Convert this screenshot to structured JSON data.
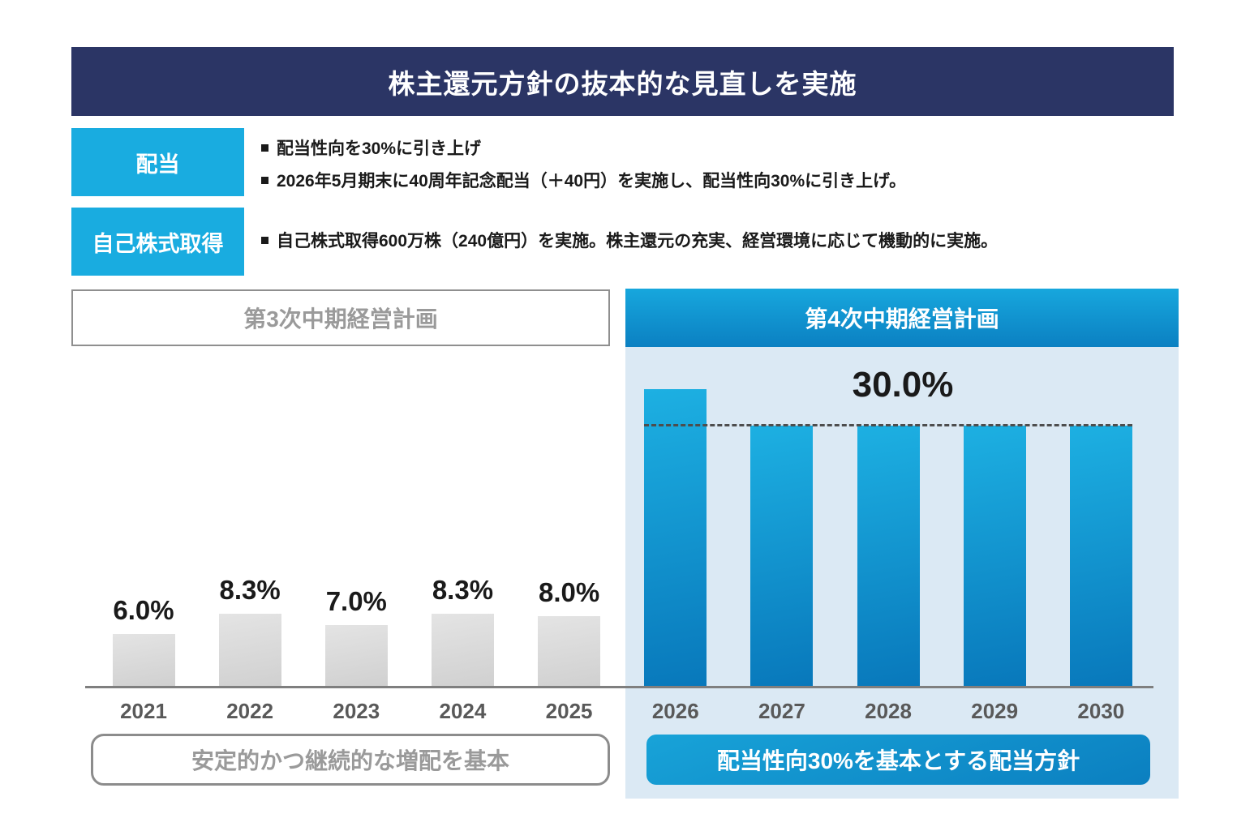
{
  "slide": {
    "title": "株主還元方針の抜本的な見直しを実施"
  },
  "policy": {
    "rows": [
      {
        "label": "配当",
        "bullets": [
          "配当性向を30%に引き上げ",
          "2026年5月期末に40周年記念配当（＋40円）を実施し、配当性向30%に引き上げ。"
        ]
      },
      {
        "label": "自己株式取得",
        "bullets": [
          "自己株式取得600万株（240億円）を実施。株主還元の充実、経営環境に応じて機動的に実施。"
        ]
      }
    ]
  },
  "chart_data": {
    "type": "bar",
    "categories": [
      "2021",
      "2022",
      "2023",
      "2024",
      "2025",
      "2026",
      "2027",
      "2028",
      "2029",
      "2030"
    ],
    "values": [
      6.0,
      8.3,
      7.0,
      8.3,
      8.0,
      34.2,
      30.0,
      30.0,
      30.0,
      30.0
    ],
    "bar_labels": [
      "6.0%",
      "8.3%",
      "7.0%",
      "8.3%",
      "8.0%",
      "",
      "",
      "",
      "",
      ""
    ],
    "segments": [
      "plan3",
      "plan3",
      "plan3",
      "plan3",
      "plan3",
      "plan4",
      "plan4",
      "plan4",
      "plan4",
      "plan4"
    ],
    "annotation": "30.0%",
    "reference_line": {
      "value": 30.0,
      "style": "dashed"
    },
    "headers": {
      "left": "第3次中期経営計画",
      "right": "第4次中期経営計画"
    },
    "footers": {
      "left": "安定的かつ継続的な増配を基本",
      "right": "配当性向30%を基本とする配当方針"
    },
    "unit": "%",
    "ylim": [
      0,
      36
    ],
    "grid": false,
    "legend": "none",
    "series_colors": {
      "plan3": "#d9d9d9",
      "plan4": "#0f8fcd"
    }
  },
  "colors": {
    "title_bg": "#2b3565",
    "accent_cyan": "#19ace0",
    "panel_bg": "#dbe9f4",
    "bar_gray": "#d9d9d9",
    "bar_blue_top": "#1db0e2",
    "bar_blue_bottom": "#0878bb",
    "axis_gray": "#7f7f7f",
    "text_dark": "#1a1a1a",
    "text_gray": "#9a9a9a"
  }
}
